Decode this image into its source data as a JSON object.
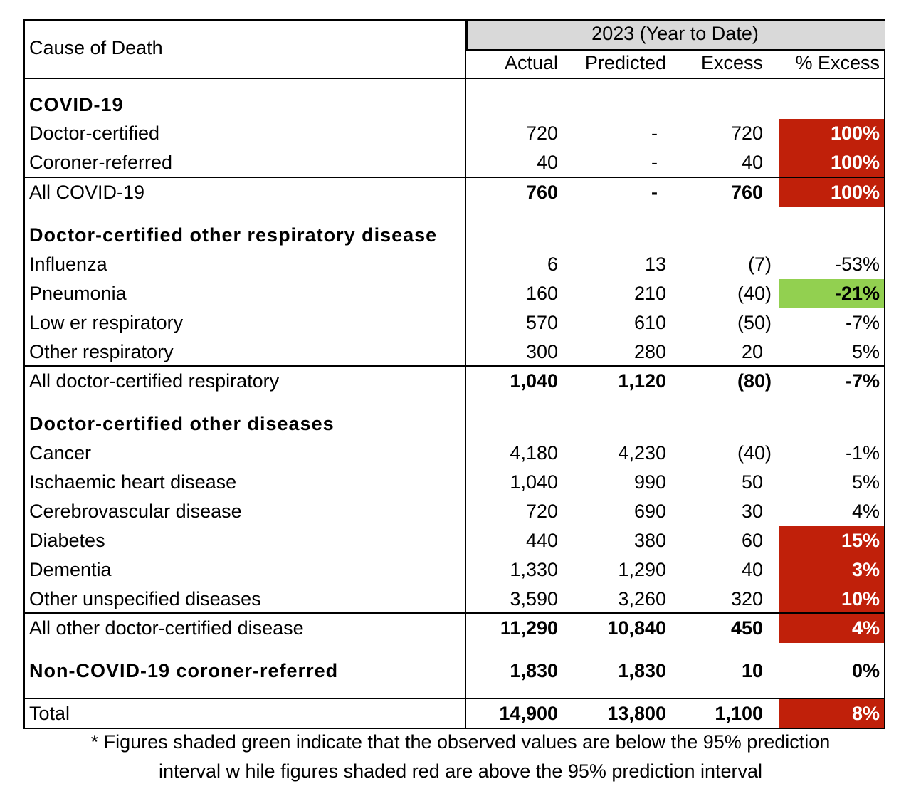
{
  "header": {
    "first_col": "Cause of Death",
    "period": "2023 (Year to Date)",
    "columns": [
      "Actual",
      "Predicted",
      "Excess",
      "% Excess"
    ]
  },
  "colors": {
    "red": "#c0200a",
    "green": "#92d050",
    "header_grey": "#d9d9d9"
  },
  "rows": [
    {
      "type": "section",
      "label": "COVID-19"
    },
    {
      "type": "data",
      "label": "Doctor-certified",
      "values": [
        "720",
        "-",
        "720",
        "100%"
      ],
      "shade": "red"
    },
    {
      "type": "data",
      "label": "Coroner-referred",
      "values": [
        "40",
        "-",
        "40",
        "100%"
      ],
      "shade": "red"
    },
    {
      "type": "total",
      "label": "All COVID-19",
      "values": [
        "760",
        "-",
        "760",
        "100%"
      ],
      "shade": "red"
    },
    {
      "type": "section",
      "label": "Doctor-certified other respiratory disease"
    },
    {
      "type": "data",
      "label": "Influenza",
      "values": [
        "6",
        "13",
        "(7)",
        "-53%"
      ]
    },
    {
      "type": "data",
      "label": "Pneumonia",
      "values": [
        "160",
        "210",
        "(40)",
        "-21%"
      ],
      "shade": "green"
    },
    {
      "type": "data",
      "label": "Low er respiratory",
      "values": [
        "570",
        "610",
        "(50)",
        "-7%"
      ]
    },
    {
      "type": "data",
      "label": "Other respiratory",
      "values": [
        "300",
        "280",
        "20",
        "5%"
      ]
    },
    {
      "type": "total",
      "label": "All doctor-certified respiratory",
      "values": [
        "1,040",
        "1,120",
        "(80)",
        "-7%"
      ]
    },
    {
      "type": "section",
      "label": "Doctor-certified other diseases"
    },
    {
      "type": "data",
      "label": "Cancer",
      "values": [
        "4,180",
        "4,230",
        "(40)",
        "-1%"
      ]
    },
    {
      "type": "data",
      "label": "Ischaemic heart disease",
      "values": [
        "1,040",
        "990",
        "50",
        "5%"
      ]
    },
    {
      "type": "data",
      "label": "Cerebrovascular disease",
      "values": [
        "720",
        "690",
        "30",
        "4%"
      ]
    },
    {
      "type": "data",
      "label": "Diabetes",
      "values": [
        "440",
        "380",
        "60",
        "15%"
      ],
      "shade": "red"
    },
    {
      "type": "data",
      "label": "Dementia",
      "values": [
        "1,330",
        "1,290",
        "40",
        "3%"
      ],
      "shade": "red"
    },
    {
      "type": "data",
      "label": "Other unspecified diseases",
      "values": [
        "3,590",
        "3,260",
        "320",
        "10%"
      ],
      "shade": "red"
    },
    {
      "type": "total",
      "label": "All other doctor-certified disease",
      "values": [
        "11,290",
        "10,840",
        "450",
        "4%"
      ],
      "shade": "red"
    },
    {
      "type": "sectiondata",
      "label": "Non-COVID-19 coroner-referred",
      "values": [
        "1,830",
        "1,830",
        "10",
        "0%"
      ]
    },
    {
      "type": "grand",
      "label": "Total",
      "values": [
        "14,900",
        "13,800",
        "1,100",
        "8%"
      ],
      "shade": "red"
    }
  ],
  "footnote": [
    "* Figures shaded green indicate that the observed values are below  the 95% prediction",
    "interval w hile figures shaded red are above the 95% prediction interval"
  ]
}
